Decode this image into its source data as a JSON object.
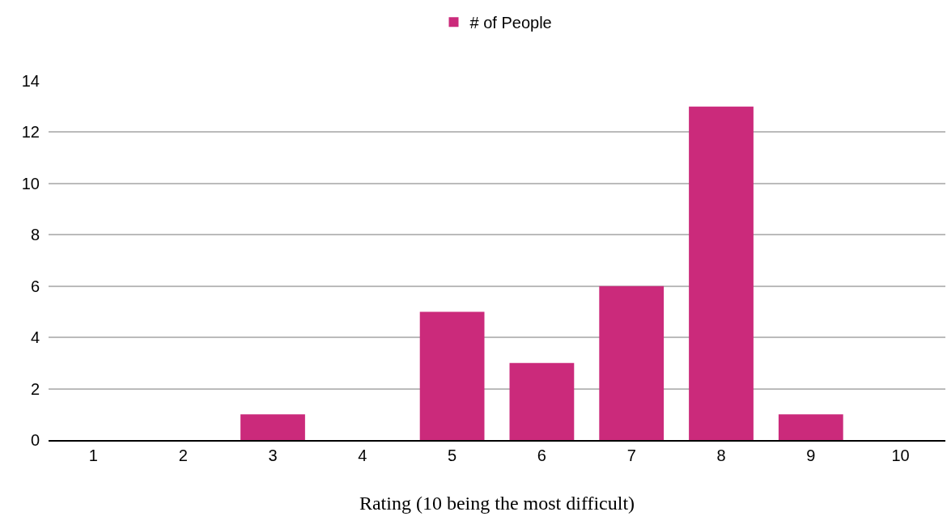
{
  "chart_data": {
    "type": "bar",
    "xlabel": "Rating (10 being the most difficult)",
    "categories": [
      "1",
      "2",
      "3",
      "4",
      "5",
      "6",
      "7",
      "8",
      "9",
      "10"
    ],
    "series": [
      {
        "name": "# of People",
        "color": "#cb2a7b",
        "values": [
          0,
          0,
          1,
          0,
          5,
          3,
          6,
          13,
          1,
          0
        ]
      }
    ],
    "ylim": [
      0,
      14
    ],
    "yticks": [
      0,
      2,
      4,
      6,
      8,
      10,
      12,
      14
    ],
    "grid": "y",
    "legend": "top"
  }
}
